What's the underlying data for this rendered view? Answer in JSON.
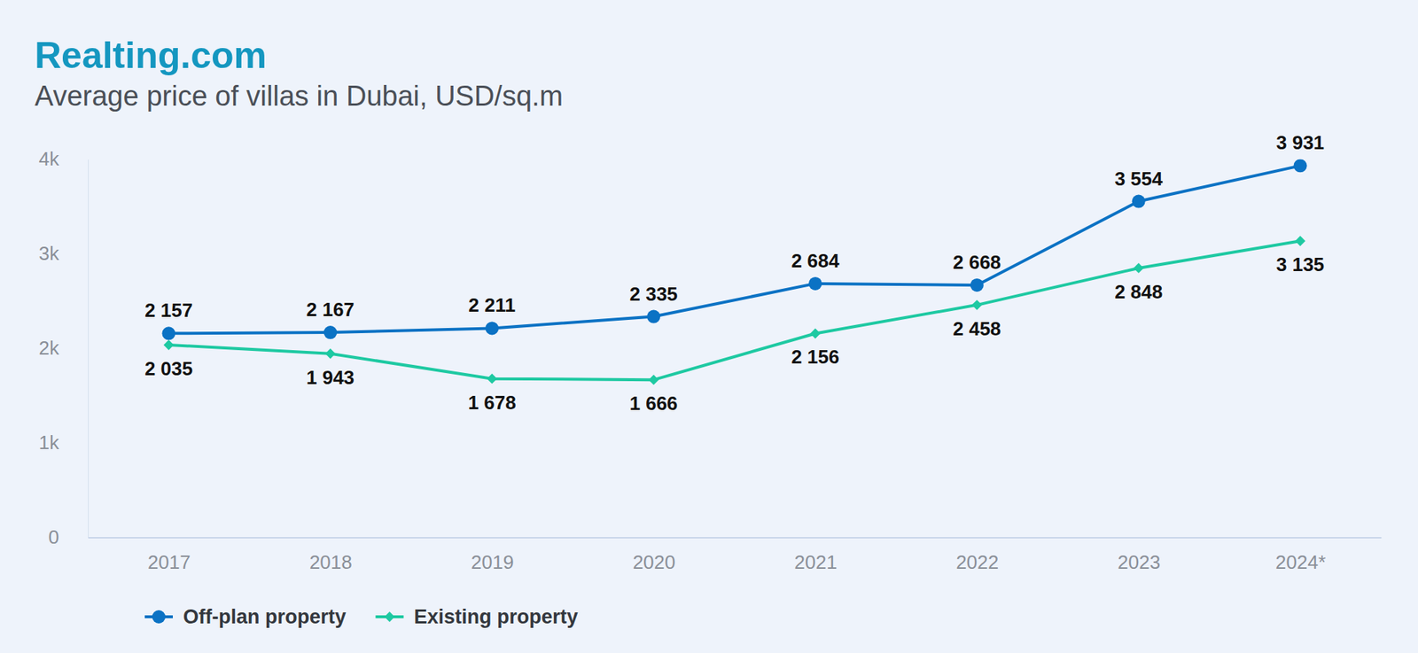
{
  "chart_data": {
    "type": "line",
    "title": "Realting.com",
    "subtitle": "Average price of villas in Dubai, USD/sq.m",
    "categories": [
      "2017",
      "2018",
      "2019",
      "2020",
      "2021",
      "2022",
      "2023",
      "2024*"
    ],
    "series": [
      {
        "name": "Off-plan property",
        "color": "#0b72c4",
        "marker": "circle",
        "values": [
          2157,
          2167,
          2211,
          2335,
          2684,
          2668,
          3554,
          3931
        ],
        "value_labels": [
          "2 157",
          "2 167",
          "2 211",
          "2 335",
          "2 684",
          "2 668",
          "3 554",
          "3 931"
        ]
      },
      {
        "name": "Existing property",
        "color": "#1ec9a2",
        "marker": "diamond",
        "values": [
          2035,
          1943,
          1678,
          1666,
          2156,
          2458,
          2848,
          3135
        ],
        "value_labels": [
          "2 035",
          "1 943",
          "1 678",
          "1 666",
          "2 156",
          "2 458",
          "2 848",
          "3 135"
        ]
      }
    ],
    "ylim": [
      0,
      4000
    ],
    "yticks": [
      0,
      {
        "value": 1000,
        "label": "1k"
      },
      {
        "value": 2000,
        "label": "2k"
      },
      {
        "value": 3000,
        "label": "3k"
      },
      {
        "value": 4000,
        "label": "4k"
      }
    ],
    "grid": false,
    "data_labels": true,
    "legend": "bottom-left"
  }
}
